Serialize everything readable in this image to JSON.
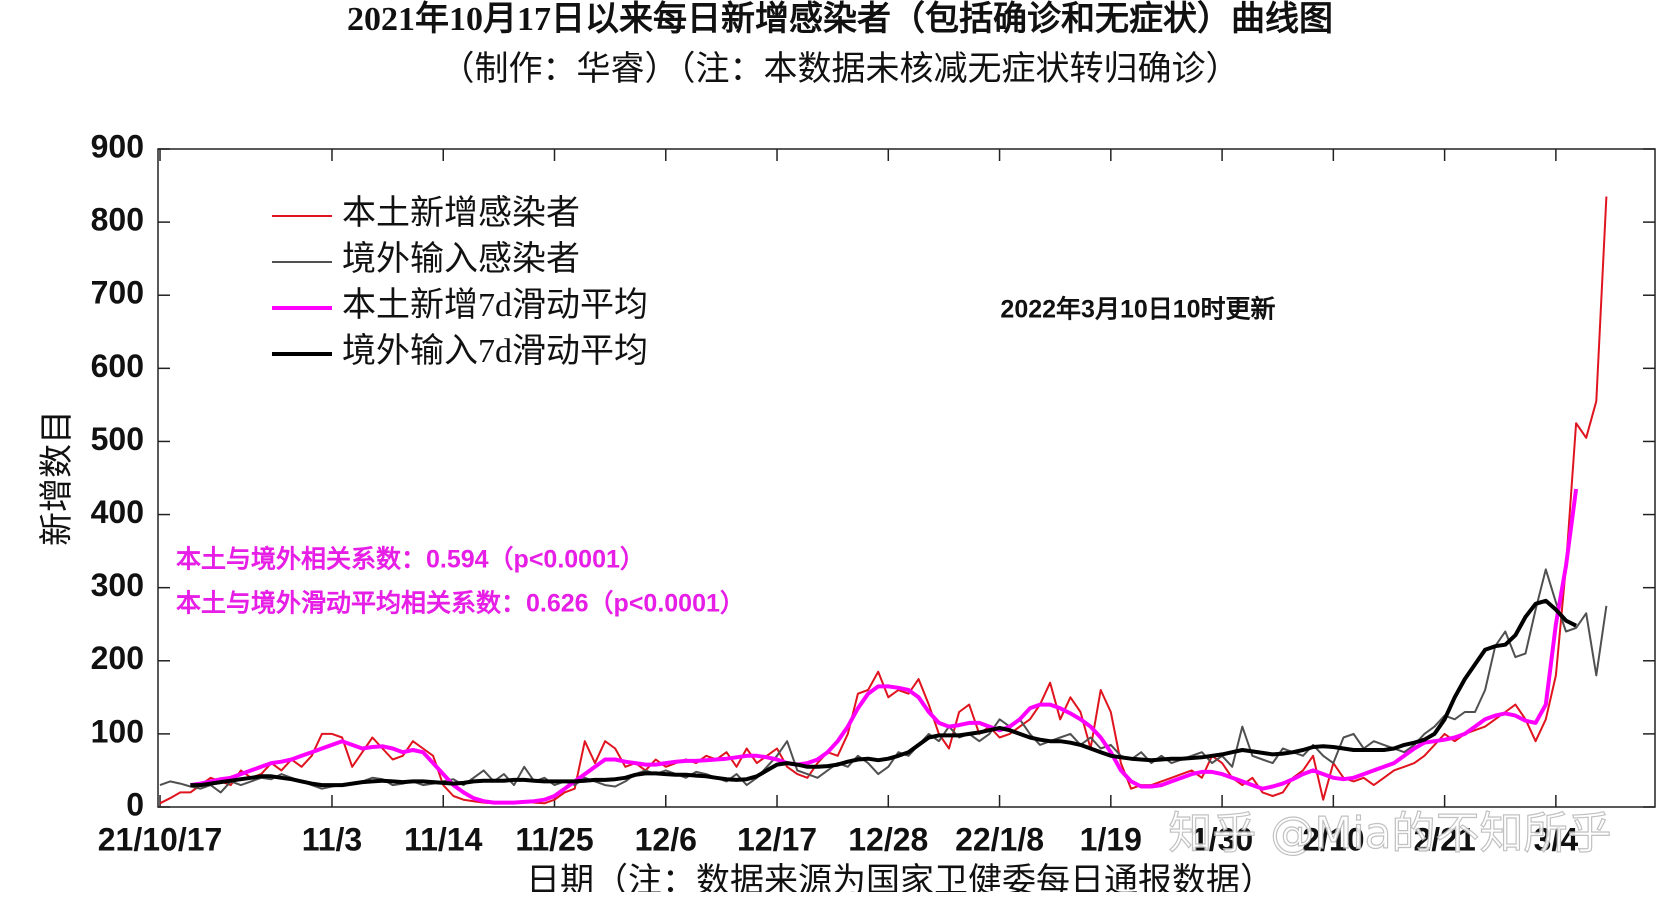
{
  "chart_data": {
    "type": "line",
    "title": "2021年10月17日以来每日新增感染者（包括确诊和无症状）曲线图",
    "subtitle": "（制作：华睿）（注：本数据未核减无症状转归确诊）",
    "x_label": "日期（注：数据来源为国家卫健委每日通报数据）",
    "y_label": "新增数目",
    "annotations": [
      "2022年3月10日10时更新",
      "本土与境外相关系数：0.594（p<0.0001）",
      "本土与境外滑动平均相关系数：0.626（p<0.0001）"
    ],
    "watermark": "知乎 @Mia的不知所乎",
    "legend": "upper left",
    "grid": false,
    "ylim": [
      0,
      900
    ],
    "yticks": [
      0,
      100,
      200,
      300,
      400,
      500,
      600,
      700,
      800,
      900
    ],
    "categories": [
      "21/10/17",
      null,
      null,
      null,
      null,
      null,
      null,
      null,
      null,
      null,
      null,
      null,
      null,
      null,
      null,
      null,
      null,
      "11/3",
      null,
      null,
      null,
      null,
      null,
      null,
      null,
      null,
      null,
      null,
      "11/14",
      null,
      null,
      null,
      null,
      null,
      null,
      null,
      null,
      null,
      null,
      "11/25",
      null,
      null,
      null,
      null,
      null,
      null,
      null,
      null,
      null,
      null,
      "12/6",
      null,
      null,
      null,
      null,
      null,
      null,
      null,
      null,
      null,
      null,
      "12/17",
      null,
      null,
      null,
      null,
      null,
      null,
      null,
      null,
      null,
      null,
      "12/28",
      null,
      null,
      null,
      null,
      null,
      null,
      null,
      null,
      null,
      null,
      "22/1/8",
      null,
      null,
      null,
      null,
      null,
      null,
      null,
      null,
      null,
      null,
      "1/19",
      null,
      null,
      null,
      null,
      null,
      null,
      null,
      null,
      null,
      null,
      "1/30",
      null,
      null,
      null,
      null,
      null,
      null,
      null,
      null,
      null,
      null,
      "2/10",
      null,
      null,
      null,
      null,
      null,
      null,
      null,
      null,
      null,
      null,
      "2/21",
      null,
      null,
      null,
      null,
      null,
      null,
      null,
      null,
      null,
      null,
      "3/4",
      null,
      null,
      null,
      null,
      null
    ],
    "series": [
      {
        "name": "本土新增感染者",
        "color": "#e0141e",
        "width": 2,
        "values": [
          5,
          12,
          20,
          20,
          30,
          40,
          35,
          30,
          50,
          40,
          45,
          60,
          50,
          65,
          55,
          70,
          100,
          100,
          95,
          55,
          75,
          95,
          80,
          65,
          70,
          90,
          80,
          70,
          30,
          15,
          10,
          8,
          6,
          5,
          6,
          5,
          8,
          6,
          5,
          10,
          20,
          25,
          90,
          60,
          90,
          80,
          55,
          60,
          50,
          65,
          55,
          60,
          65,
          60,
          70,
          65,
          75,
          55,
          80,
          60,
          70,
          80,
          55,
          45,
          40,
          60,
          75,
          70,
          100,
          155,
          160,
          185,
          150,
          160,
          155,
          175,
          140,
          100,
          80,
          130,
          140,
          100,
          110,
          95,
          100,
          110,
          120,
          140,
          170,
          120,
          150,
          130,
          80,
          160,
          130,
          60,
          25,
          30,
          30,
          35,
          40,
          45,
          50,
          40,
          70,
          60,
          40,
          30,
          40,
          20,
          15,
          20,
          40,
          50,
          70,
          10,
          60,
          40,
          35,
          40,
          30,
          40,
          50,
          55,
          60,
          70,
          85,
          100,
          90,
          100,
          105,
          110,
          120,
          130,
          140,
          120,
          90,
          120,
          180,
          330,
          525,
          505,
          555,
          835
        ]
      },
      {
        "name": "境外输入感染者",
        "color": "#505050",
        "width": 2,
        "values": [
          30,
          35,
          32,
          28,
          25,
          30,
          20,
          35,
          30,
          35,
          40,
          38,
          45,
          40,
          35,
          30,
          25,
          28,
          30,
          32,
          35,
          40,
          38,
          30,
          32,
          35,
          30,
          32,
          35,
          38,
          30,
          40,
          50,
          35,
          45,
          30,
          55,
          35,
          40,
          30,
          35,
          30,
          40,
          35,
          30,
          28,
          35,
          45,
          50,
          45,
          50,
          45,
          40,
          48,
          45,
          40,
          35,
          45,
          30,
          40,
          55,
          70,
          90,
          50,
          45,
          40,
          50,
          60,
          55,
          70,
          60,
          45,
          55,
          75,
          70,
          85,
          100,
          90,
          110,
          95,
          100,
          90,
          100,
          120,
          110,
          120,
          100,
          85,
          90,
          95,
          100,
          85,
          95,
          80,
          85,
          70,
          65,
          75,
          60,
          70,
          60,
          65,
          70,
          75,
          60,
          70,
          55,
          110,
          70,
          65,
          60,
          80,
          75,
          70,
          85,
          70,
          60,
          95,
          100,
          80,
          90,
          85,
          80,
          75,
          85,
          100,
          110,
          125,
          120,
          130,
          130,
          160,
          220,
          240,
          205,
          210,
          270,
          325,
          280,
          240,
          245,
          265,
          180,
          275
        ]
      },
      {
        "name": "本土新增7d滑动平均",
        "color": "#ff00ff",
        "width": 4,
        "values": [
          null,
          null,
          null,
          30,
          32,
          35,
          38,
          40,
          45,
          50,
          55,
          60,
          62,
          65,
          70,
          75,
          80,
          85,
          90,
          85,
          80,
          82,
          83,
          80,
          75,
          78,
          75,
          60,
          45,
          30,
          20,
          12,
          8,
          6,
          6,
          6,
          7,
          8,
          10,
          15,
          25,
          35,
          45,
          55,
          65,
          65,
          62,
          60,
          58,
          58,
          60,
          62,
          63,
          63,
          64,
          65,
          66,
          68,
          70,
          70,
          68,
          65,
          60,
          58,
          60,
          65,
          75,
          90,
          110,
          135,
          155,
          165,
          165,
          163,
          160,
          150,
          130,
          115,
          110,
          112,
          115,
          115,
          110,
          105,
          110,
          120,
          135,
          140,
          140,
          135,
          128,
          120,
          110,
          95,
          75,
          50,
          35,
          28,
          28,
          30,
          35,
          40,
          45,
          48,
          48,
          45,
          40,
          35,
          30,
          25,
          28,
          32,
          38,
          45,
          50,
          45,
          40,
          38,
          40,
          45,
          50,
          55,
          60,
          70,
          80,
          88,
          90,
          92,
          95,
          100,
          110,
          120,
          125,
          128,
          125,
          118,
          115,
          140,
          250,
          330,
          435,
          null,
          null,
          null
        ]
      },
      {
        "name": "境外输入7d滑动平均",
        "color": "#000000",
        "width": 4,
        "values": [
          null,
          null,
          null,
          30,
          30,
          32,
          34,
          36,
          38,
          40,
          42,
          42,
          40,
          38,
          35,
          32,
          30,
          30,
          30,
          32,
          34,
          35,
          36,
          35,
          34,
          35,
          35,
          34,
          33,
          32,
          33,
          35,
          36,
          36,
          36,
          37,
          37,
          36,
          35,
          35,
          35,
          35,
          36,
          37,
          37,
          38,
          40,
          44,
          46,
          46,
          45,
          44,
          44,
          43,
          42,
          40,
          38,
          37,
          38,
          42,
          50,
          58,
          60,
          58,
          55,
          55,
          56,
          58,
          62,
          65,
          66,
          64,
          66,
          70,
          75,
          85,
          95,
          98,
          98,
          98,
          100,
          102,
          105,
          108,
          105,
          100,
          95,
          92,
          90,
          90,
          88,
          85,
          80,
          75,
          70,
          68,
          66,
          65,
          64,
          65,
          66,
          66,
          67,
          68,
          70,
          72,
          75,
          78,
          76,
          74,
          72,
          73,
          75,
          78,
          82,
          83,
          82,
          80,
          78,
          78,
          78,
          78,
          80,
          85,
          88,
          92,
          100,
          120,
          150,
          175,
          195,
          215,
          220,
          222,
          235,
          260,
          278,
          282,
          270,
          255,
          248,
          null,
          null,
          null
        ]
      }
    ]
  }
}
